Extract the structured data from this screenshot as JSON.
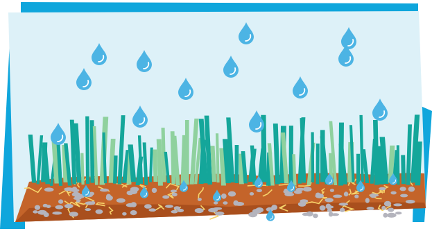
{
  "scene": {
    "subject": "rain-on-dry-soil-with-grass",
    "icons": [
      "raindrop-icon",
      "grass-blade-icon",
      "soil-crack-icon",
      "pebble-icon"
    ]
  },
  "colors": {
    "frame_blue": "#0fa6dc",
    "sky": "#ddf1f8",
    "drop_light": "#cfeaf6",
    "drop_blue": "#4cb4e4",
    "drop_dark": "#2e95cf",
    "soil": "#c4642a",
    "soil_dark": "#a94f1d",
    "crack": "#f6d36b",
    "pebble": "#b4b4bd",
    "grass_teal": "#14a69a",
    "grass_light": "#8fd19e"
  }
}
